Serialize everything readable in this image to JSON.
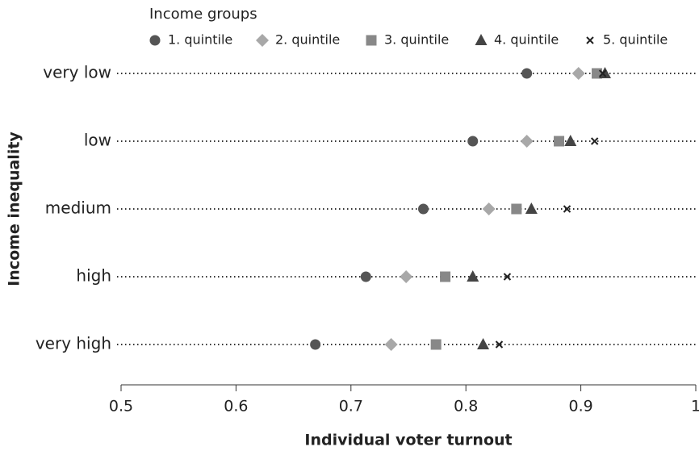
{
  "chart_data": {
    "type": "dot",
    "legend_title": "Income groups",
    "x_label": "Individual voter turnout",
    "y_label": "Income inequality",
    "categories": [
      "very low",
      "low",
      "medium",
      "high",
      "very high"
    ],
    "series": [
      {
        "name": "1. quintile",
        "color": "#555555",
        "marker": "circle",
        "values": [
          0.853,
          0.806,
          0.763,
          0.713,
          0.669
        ]
      },
      {
        "name": "2. quintile",
        "color": "#a8a8a8",
        "marker": "diamond",
        "values": [
          0.898,
          0.853,
          0.82,
          0.748,
          0.735
        ]
      },
      {
        "name": "3. quintile",
        "color": "#888888",
        "marker": "square",
        "values": [
          0.914,
          0.881,
          0.844,
          0.782,
          0.774
        ]
      },
      {
        "name": "4. quintile",
        "color": "#444444",
        "marker": "triangle",
        "values": [
          0.921,
          0.891,
          0.857,
          0.806,
          0.815
        ]
      },
      {
        "name": "5. quintile",
        "color": "#222222",
        "marker": "x",
        "values": [
          0.919,
          0.912,
          0.888,
          0.836,
          0.829
        ]
      }
    ],
    "xlim": [
      0.5,
      1
    ],
    "xticks": [
      0.5,
      0.6,
      0.7,
      0.8,
      0.9,
      1
    ]
  }
}
